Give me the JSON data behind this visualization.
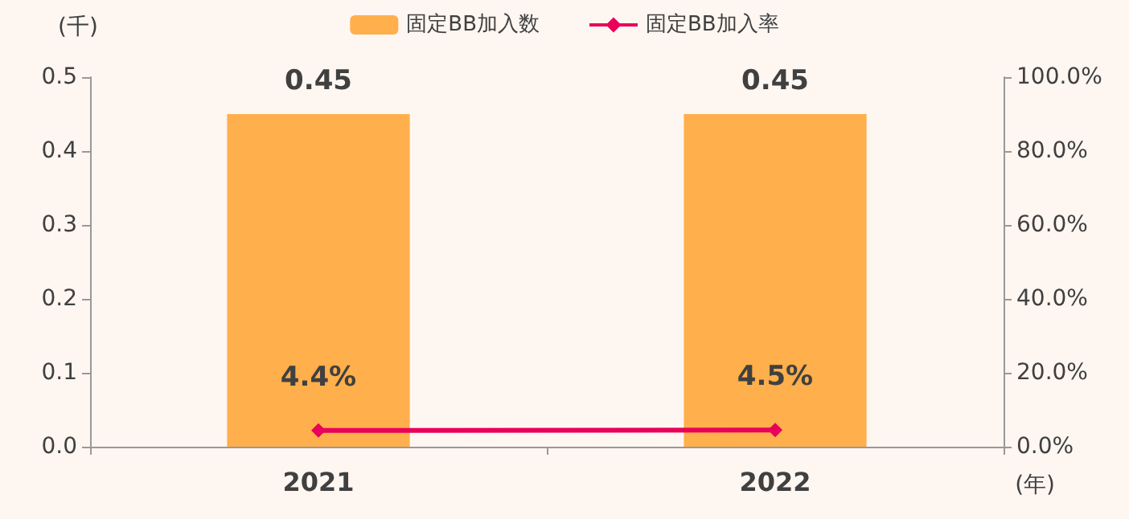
{
  "chart_data": {
    "type": "bar",
    "categories": [
      "2021",
      "2022"
    ],
    "ylabel": "(千)",
    "xlabel": "(年)",
    "series": [
      {
        "name": "固定BB加入数",
        "color": "#ffaf4b",
        "values": [
          0.45,
          0.45
        ],
        "value_labels": [
          "0.45",
          "0.45"
        ]
      },
      {
        "name": "固定BB加入率",
        "type": "line",
        "axis": "y2",
        "color": "#e8005a",
        "marker": "diamond",
        "values": [
          4.4,
          4.5
        ],
        "value_labels": [
          "4.4%",
          "4.5%"
        ]
      }
    ],
    "ylim": [
      0,
      0.5
    ],
    "yticks": [
      {
        "value": 0,
        "label": "0.0"
      },
      {
        "value": 0.1,
        "label": "0.1"
      },
      {
        "value": 0.2,
        "label": "0.2"
      },
      {
        "value": 0.3,
        "label": "0.3"
      },
      {
        "value": 0.4,
        "label": "0.4"
      },
      {
        "value": 0.5,
        "label": "0.5"
      }
    ],
    "y2lim": [
      0,
      100
    ],
    "y2ticks": [
      {
        "value": 0,
        "label": "0.0%"
      },
      {
        "value": 20,
        "label": "20.0%"
      },
      {
        "value": 40,
        "label": "40.0%"
      },
      {
        "value": 60,
        "label": "60.0%"
      },
      {
        "value": 80,
        "label": "80.0%"
      },
      {
        "value": 100,
        "label": "100.0%"
      }
    ],
    "legend": "top",
    "grid": false
  }
}
